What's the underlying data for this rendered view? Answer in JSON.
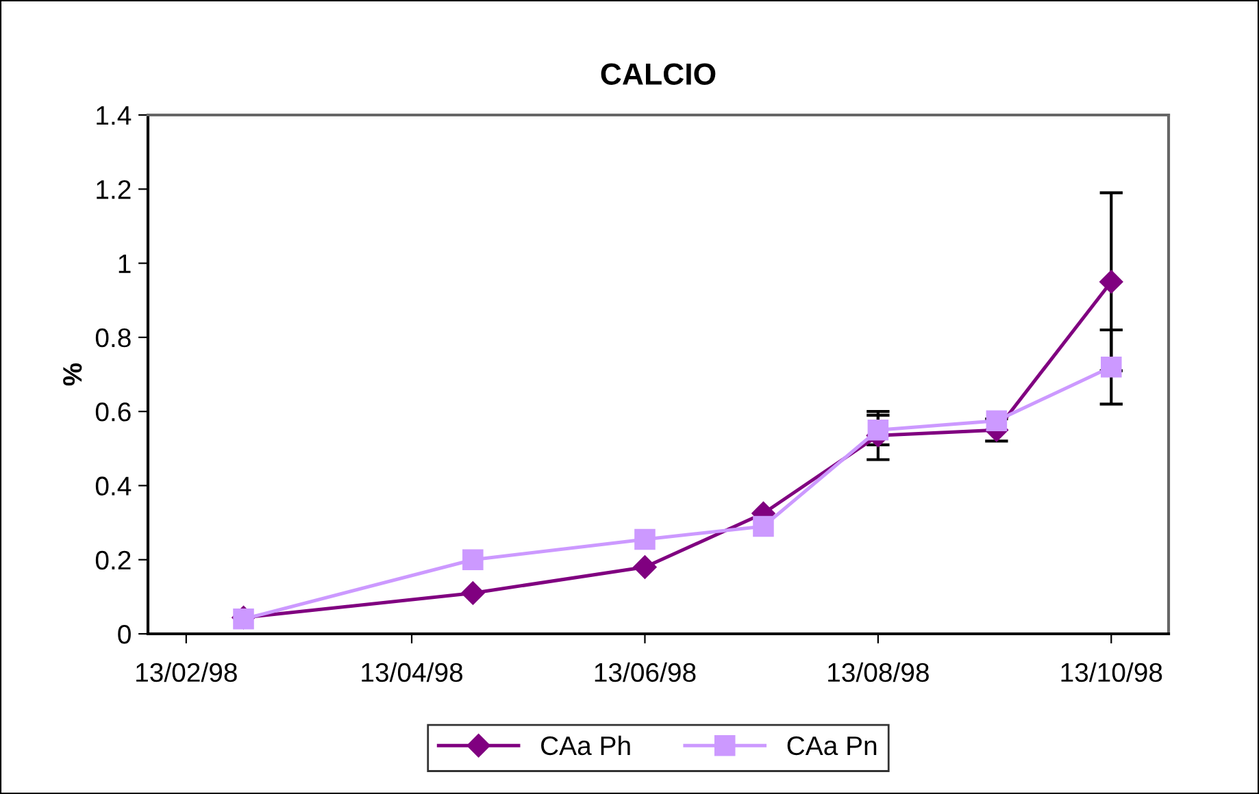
{
  "chart_data": {
    "type": "line",
    "title": "CALCIO",
    "ylabel": "%",
    "x": [
      "1998-02-28",
      "1998-04-29",
      "1998-06-13",
      "1998-07-14",
      "1998-08-13",
      "1998-09-13",
      "1998-10-13"
    ],
    "series": [
      {
        "name": "CAa Ph",
        "color": "#800080",
        "marker": "diamond",
        "values": [
          0.044,
          0.11,
          0.18,
          0.325,
          0.535,
          0.55,
          0.95
        ],
        "errors": [
          null,
          null,
          null,
          null,
          0.065,
          0.03,
          0.24
        ]
      },
      {
        "name": "CAa Pn",
        "color": "#cc99ff",
        "marker": "square",
        "values": [
          0.04,
          0.2,
          0.255,
          0.29,
          0.55,
          0.575,
          0.72
        ],
        "errors": [
          null,
          null,
          null,
          null,
          0.04,
          null,
          0.1
        ]
      }
    ],
    "xlim": [
      "1998-02-03",
      "1998-10-28"
    ],
    "xticks": [
      {
        "value": "1998-02-13",
        "label": "13/02/98"
      },
      {
        "value": "1998-04-13",
        "label": "13/04/98"
      },
      {
        "value": "1998-06-13",
        "label": "13/06/98"
      },
      {
        "value": "1998-08-13",
        "label": "13/08/98"
      },
      {
        "value": "1998-10-13",
        "label": "13/10/98"
      }
    ],
    "ylim": [
      0,
      1.4
    ],
    "yticks": [
      0,
      0.2,
      0.4,
      0.6,
      0.8,
      1,
      1.2,
      1.4
    ],
    "grid": false,
    "legend": "bottom",
    "line_style": "solid"
  }
}
